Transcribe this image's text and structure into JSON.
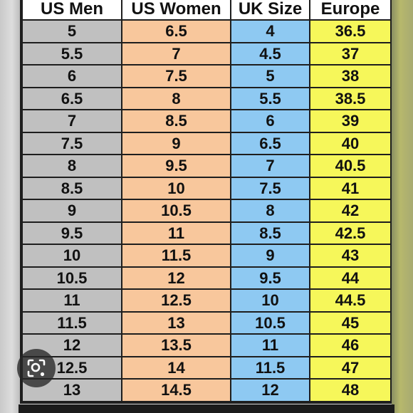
{
  "headers": [
    "US Men",
    "US Women",
    "UK Size",
    "Europe"
  ],
  "rows": [
    [
      "5",
      "6.5",
      "4",
      "36.5"
    ],
    [
      "5.5",
      "7",
      "4.5",
      "37"
    ],
    [
      "6",
      "7.5",
      "5",
      "38"
    ],
    [
      "6.5",
      "8",
      "5.5",
      "38.5"
    ],
    [
      "7",
      "8.5",
      "6",
      "39"
    ],
    [
      "7.5",
      "9",
      "6.5",
      "40"
    ],
    [
      "8",
      "9.5",
      "7",
      "40.5"
    ],
    [
      "8.5",
      "10",
      "7.5",
      "41"
    ],
    [
      "9",
      "10.5",
      "8",
      "42"
    ],
    [
      "9.5",
      "11",
      "8.5",
      "42.5"
    ],
    [
      "10",
      "11.5",
      "9",
      "43"
    ],
    [
      "10.5",
      "12",
      "9.5",
      "44"
    ],
    [
      "11",
      "12.5",
      "10",
      "44.5"
    ],
    [
      "11.5",
      "13",
      "10.5",
      "45"
    ],
    [
      "12",
      "13.5",
      "11",
      "46"
    ],
    [
      "12.5",
      "14",
      "11.5",
      "47"
    ],
    [
      "13",
      "14.5",
      "12",
      "48"
    ]
  ],
  "column_colors": {
    "us_men": "#c0c0c0",
    "us_women": "#f8c79c",
    "uk_size": "#8ec9f2",
    "europe": "#f6f75a"
  },
  "overlay": {
    "icon": "lens-search-icon"
  }
}
